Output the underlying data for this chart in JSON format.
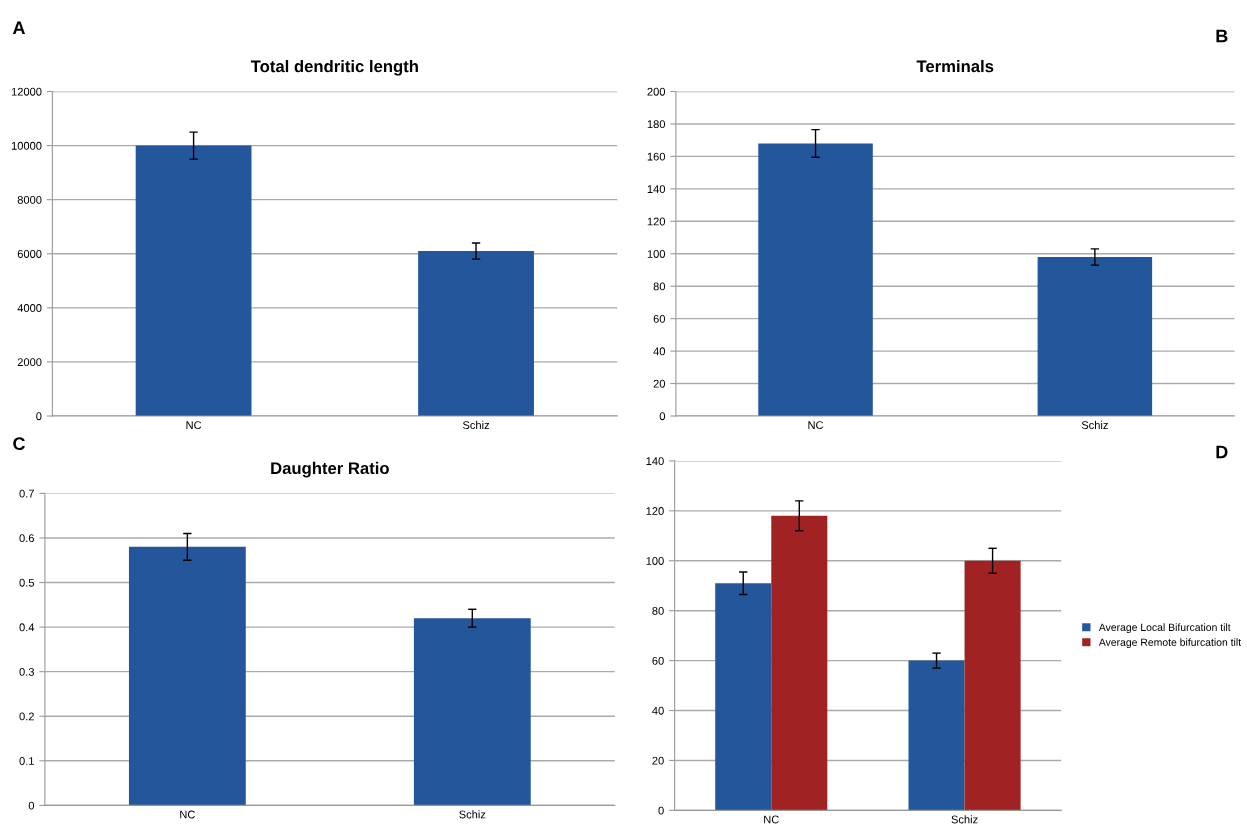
{
  "chart_data": [
    {
      "type": "bar",
      "title": "Total dendritic length",
      "annotations": [
        "A"
      ],
      "categories": [
        "NC",
        "Schiz"
      ],
      "series": [
        {
          "color": "#23569b",
          "values": [
            10000,
            6100
          ],
          "errors": [
            500,
            300
          ]
        }
      ],
      "ylim": [
        0,
        12000
      ],
      "yticks": [
        0,
        2000,
        4000,
        6000,
        8000,
        10000,
        12000
      ],
      "grid": "y"
    },
    {
      "type": "bar",
      "title": "Terminals",
      "annotations": [
        "B"
      ],
      "categories": [
        "NC",
        "Schiz"
      ],
      "series": [
        {
          "color": "#23569b",
          "values": [
            168,
            98
          ],
          "errors": [
            8.5,
            5
          ]
        }
      ],
      "ylim": [
        0,
        200
      ],
      "yticks": [
        0,
        20,
        40,
        60,
        80,
        100,
        120,
        140,
        160,
        180,
        200
      ],
      "grid": "y"
    },
    {
      "type": "bar",
      "title": "Daughter Ratio",
      "annotations": [
        "C"
      ],
      "categories": [
        "NC",
        "Schiz"
      ],
      "series": [
        {
          "color": "#23569b",
          "values": [
            0.58,
            0.42
          ],
          "errors": [
            0.03,
            0.02
          ]
        }
      ],
      "ylim": [
        0,
        0.7
      ],
      "yticks": [
        0,
        0.1,
        0.2,
        0.3,
        0.4,
        0.5,
        0.6,
        0.7
      ],
      "grid": "y"
    },
    {
      "type": "bar",
      "annotations": [
        "D"
      ],
      "categories": [
        "NC",
        "Schiz"
      ],
      "series": [
        {
          "name": "Average Local Bifurcation tilt",
          "color": "#23569b",
          "values": [
            91,
            60
          ],
          "errors": [
            4.5,
            3
          ]
        },
        {
          "name": "Average Remote bifurcation tilt",
          "color": "#a12222",
          "values": [
            118,
            100
          ],
          "errors": [
            6,
            5
          ]
        }
      ],
      "ylim": [
        0,
        140
      ],
      "yticks": [
        0,
        20,
        40,
        60,
        80,
        100,
        120,
        140
      ],
      "grid": "y",
      "legend": "right"
    }
  ]
}
